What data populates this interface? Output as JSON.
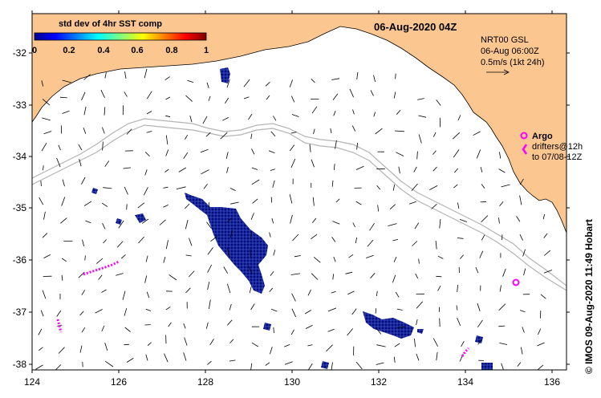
{
  "title": "06-Aug-2020 04Z",
  "colorbar": {
    "title": "std dev of 4hr SST comp",
    "ticks": [
      "0",
      "0.2",
      "0.4",
      "0.6",
      "0.8",
      "1"
    ]
  },
  "info": {
    "line1": "NRT00 GSL",
    "line2": "06-Aug 06:00Z",
    "line3": "0.5m/s (1kt 24h)"
  },
  "legend": {
    "argo": "Argo",
    "drifters": "drifters@12h",
    "drifters_to": "to 07/08-12Z"
  },
  "credit": "© IMOS 09-Aug-2020 11:49 Hobart",
  "lat_labels": [
    "-32",
    "-33",
    "-34",
    "-35",
    "-36",
    "-37",
    "-38"
  ],
  "lon_labels": [
    "124",
    "126",
    "128",
    "130",
    "132",
    "134",
    "136"
  ],
  "colors": {
    "land": "#fbc690",
    "sst_low": "#000d8c",
    "drifter": "#ff00ff",
    "isobath": "#b4b4b4"
  }
}
